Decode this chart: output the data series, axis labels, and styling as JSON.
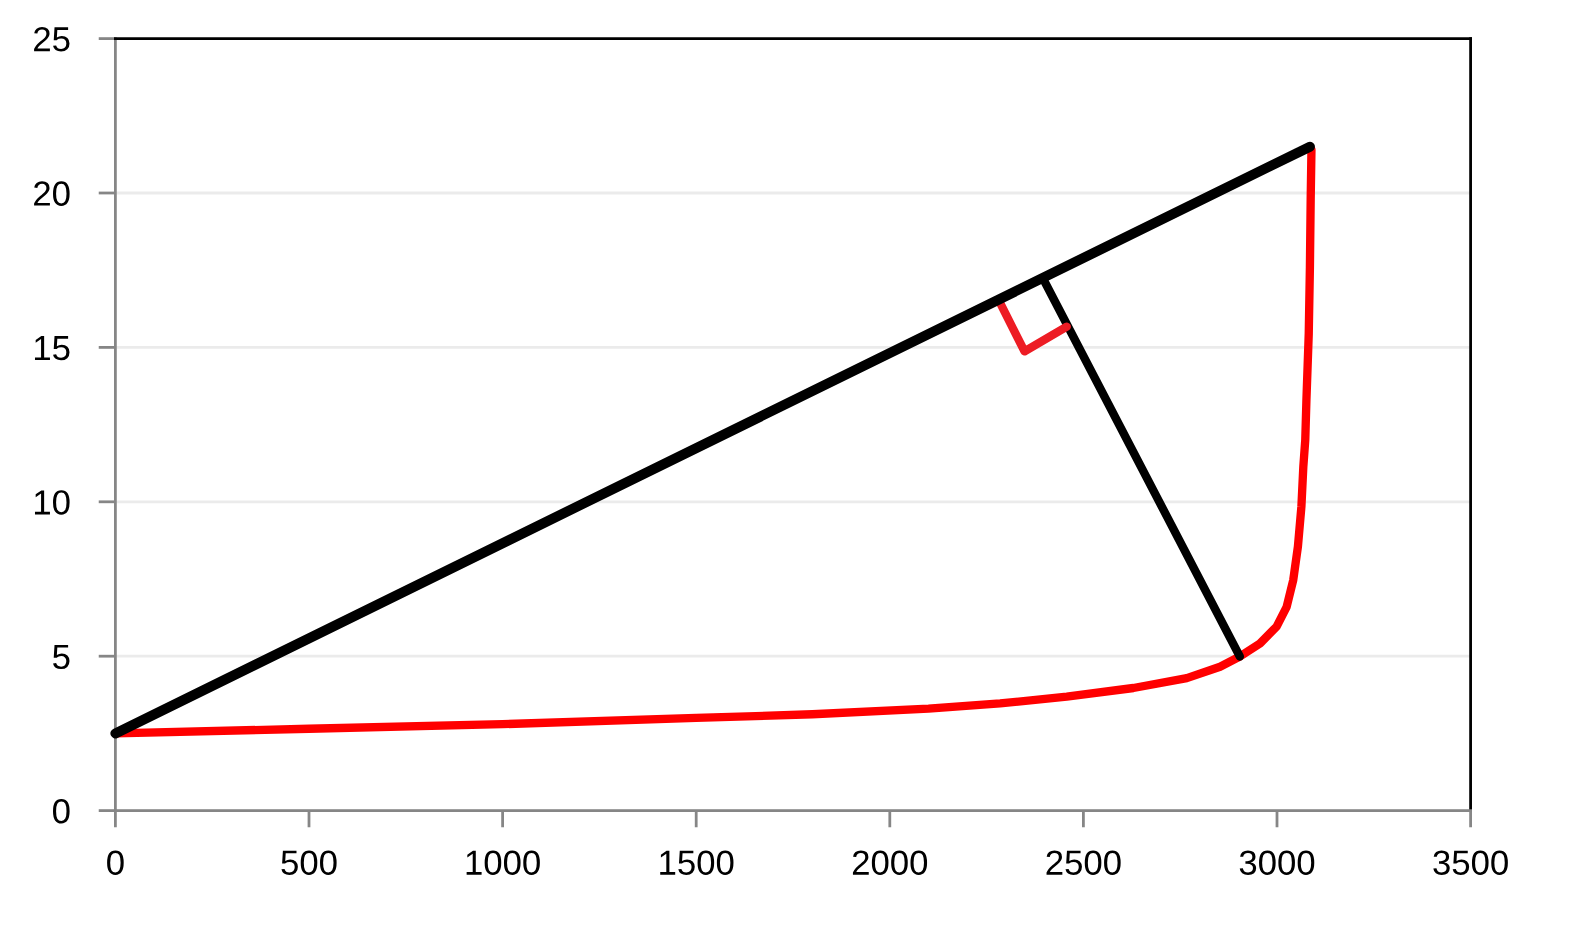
{
  "chart_data": {
    "type": "line",
    "xlim": [
      0,
      3500
    ],
    "xticks": [
      0,
      500,
      1000,
      1500,
      2000,
      2500,
      3000,
      3500
    ],
    "ylim": [
      0,
      25
    ],
    "yticks": [
      0,
      5,
      10,
      15,
      20,
      25
    ],
    "grid": "y",
    "marker": "none",
    "line_style": "solid",
    "series": [
      {
        "color": "#ff0000",
        "x": [
          0,
          500,
          1000,
          1500,
          1800,
          2100,
          2285,
          2457,
          2629,
          2767,
          2853,
          2904,
          2956,
          2999,
          3025,
          3042,
          3054,
          3063,
          3068,
          3073,
          3076,
          3082,
          3085,
          3087,
          3089
        ],
        "values": [
          2.5,
          2.65,
          2.8,
          3.0,
          3.12,
          3.3,
          3.47,
          3.69,
          3.97,
          4.29,
          4.66,
          4.99,
          5.41,
          5.96,
          6.6,
          7.47,
          8.55,
          9.84,
          11.14,
          12.0,
          13.3,
          15.45,
          17.6,
          19.8,
          21.4
        ]
      },
      {
        "color": "#000000",
        "x": [
          0,
          3085
        ],
        "values": [
          2.5,
          21.5
        ]
      },
      {
        "color": "#000000",
        "x": [
          2904,
          2397
        ],
        "values": [
          4.99,
          17.2
        ]
      },
      {
        "color": "#ed1c24",
        "x": [
          2281,
          2348,
          2457
        ],
        "values": [
          16.54,
          14.87,
          15.67
        ]
      }
    ]
  }
}
